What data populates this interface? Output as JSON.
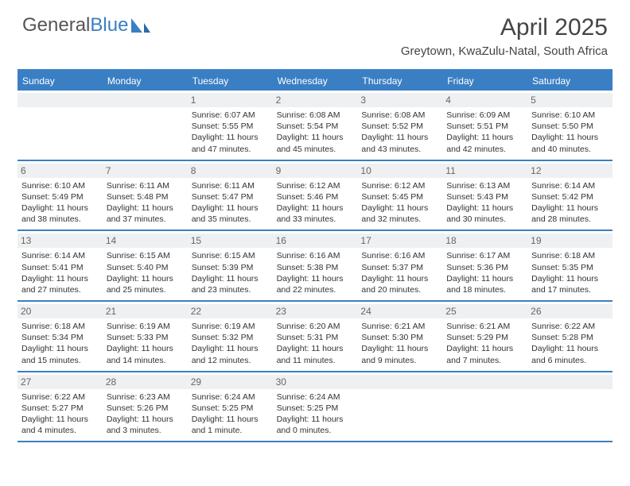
{
  "logo": {
    "text1": "General",
    "text2": "Blue"
  },
  "title": "April 2025",
  "location": "Greytown, KwaZulu-Natal, South Africa",
  "colors": {
    "accent": "#3a7fc4",
    "header_bg": "#3a7fc4",
    "daynum_bg": "#eef0f2",
    "text": "#333333",
    "border": "#3a7fc4"
  },
  "day_labels": [
    "Sunday",
    "Monday",
    "Tuesday",
    "Wednesday",
    "Thursday",
    "Friday",
    "Saturday"
  ],
  "weeks": [
    [
      null,
      null,
      {
        "n": "1",
        "sr": "Sunrise: 6:07 AM",
        "ss": "Sunset: 5:55 PM",
        "dl": "Daylight: 11 hours and 47 minutes."
      },
      {
        "n": "2",
        "sr": "Sunrise: 6:08 AM",
        "ss": "Sunset: 5:54 PM",
        "dl": "Daylight: 11 hours and 45 minutes."
      },
      {
        "n": "3",
        "sr": "Sunrise: 6:08 AM",
        "ss": "Sunset: 5:52 PM",
        "dl": "Daylight: 11 hours and 43 minutes."
      },
      {
        "n": "4",
        "sr": "Sunrise: 6:09 AM",
        "ss": "Sunset: 5:51 PM",
        "dl": "Daylight: 11 hours and 42 minutes."
      },
      {
        "n": "5",
        "sr": "Sunrise: 6:10 AM",
        "ss": "Sunset: 5:50 PM",
        "dl": "Daylight: 11 hours and 40 minutes."
      }
    ],
    [
      {
        "n": "6",
        "sr": "Sunrise: 6:10 AM",
        "ss": "Sunset: 5:49 PM",
        "dl": "Daylight: 11 hours and 38 minutes."
      },
      {
        "n": "7",
        "sr": "Sunrise: 6:11 AM",
        "ss": "Sunset: 5:48 PM",
        "dl": "Daylight: 11 hours and 37 minutes."
      },
      {
        "n": "8",
        "sr": "Sunrise: 6:11 AM",
        "ss": "Sunset: 5:47 PM",
        "dl": "Daylight: 11 hours and 35 minutes."
      },
      {
        "n": "9",
        "sr": "Sunrise: 6:12 AM",
        "ss": "Sunset: 5:46 PM",
        "dl": "Daylight: 11 hours and 33 minutes."
      },
      {
        "n": "10",
        "sr": "Sunrise: 6:12 AM",
        "ss": "Sunset: 5:45 PM",
        "dl": "Daylight: 11 hours and 32 minutes."
      },
      {
        "n": "11",
        "sr": "Sunrise: 6:13 AM",
        "ss": "Sunset: 5:43 PM",
        "dl": "Daylight: 11 hours and 30 minutes."
      },
      {
        "n": "12",
        "sr": "Sunrise: 6:14 AM",
        "ss": "Sunset: 5:42 PM",
        "dl": "Daylight: 11 hours and 28 minutes."
      }
    ],
    [
      {
        "n": "13",
        "sr": "Sunrise: 6:14 AM",
        "ss": "Sunset: 5:41 PM",
        "dl": "Daylight: 11 hours and 27 minutes."
      },
      {
        "n": "14",
        "sr": "Sunrise: 6:15 AM",
        "ss": "Sunset: 5:40 PM",
        "dl": "Daylight: 11 hours and 25 minutes."
      },
      {
        "n": "15",
        "sr": "Sunrise: 6:15 AM",
        "ss": "Sunset: 5:39 PM",
        "dl": "Daylight: 11 hours and 23 minutes."
      },
      {
        "n": "16",
        "sr": "Sunrise: 6:16 AM",
        "ss": "Sunset: 5:38 PM",
        "dl": "Daylight: 11 hours and 22 minutes."
      },
      {
        "n": "17",
        "sr": "Sunrise: 6:16 AM",
        "ss": "Sunset: 5:37 PM",
        "dl": "Daylight: 11 hours and 20 minutes."
      },
      {
        "n": "18",
        "sr": "Sunrise: 6:17 AM",
        "ss": "Sunset: 5:36 PM",
        "dl": "Daylight: 11 hours and 18 minutes."
      },
      {
        "n": "19",
        "sr": "Sunrise: 6:18 AM",
        "ss": "Sunset: 5:35 PM",
        "dl": "Daylight: 11 hours and 17 minutes."
      }
    ],
    [
      {
        "n": "20",
        "sr": "Sunrise: 6:18 AM",
        "ss": "Sunset: 5:34 PM",
        "dl": "Daylight: 11 hours and 15 minutes."
      },
      {
        "n": "21",
        "sr": "Sunrise: 6:19 AM",
        "ss": "Sunset: 5:33 PM",
        "dl": "Daylight: 11 hours and 14 minutes."
      },
      {
        "n": "22",
        "sr": "Sunrise: 6:19 AM",
        "ss": "Sunset: 5:32 PM",
        "dl": "Daylight: 11 hours and 12 minutes."
      },
      {
        "n": "23",
        "sr": "Sunrise: 6:20 AM",
        "ss": "Sunset: 5:31 PM",
        "dl": "Daylight: 11 hours and 11 minutes."
      },
      {
        "n": "24",
        "sr": "Sunrise: 6:21 AM",
        "ss": "Sunset: 5:30 PM",
        "dl": "Daylight: 11 hours and 9 minutes."
      },
      {
        "n": "25",
        "sr": "Sunrise: 6:21 AM",
        "ss": "Sunset: 5:29 PM",
        "dl": "Daylight: 11 hours and 7 minutes."
      },
      {
        "n": "26",
        "sr": "Sunrise: 6:22 AM",
        "ss": "Sunset: 5:28 PM",
        "dl": "Daylight: 11 hours and 6 minutes."
      }
    ],
    [
      {
        "n": "27",
        "sr": "Sunrise: 6:22 AM",
        "ss": "Sunset: 5:27 PM",
        "dl": "Daylight: 11 hours and 4 minutes."
      },
      {
        "n": "28",
        "sr": "Sunrise: 6:23 AM",
        "ss": "Sunset: 5:26 PM",
        "dl": "Daylight: 11 hours and 3 minutes."
      },
      {
        "n": "29",
        "sr": "Sunrise: 6:24 AM",
        "ss": "Sunset: 5:25 PM",
        "dl": "Daylight: 11 hours and 1 minute."
      },
      {
        "n": "30",
        "sr": "Sunrise: 6:24 AM",
        "ss": "Sunset: 5:25 PM",
        "dl": "Daylight: 11 hours and 0 minutes."
      },
      null,
      null,
      null
    ]
  ]
}
